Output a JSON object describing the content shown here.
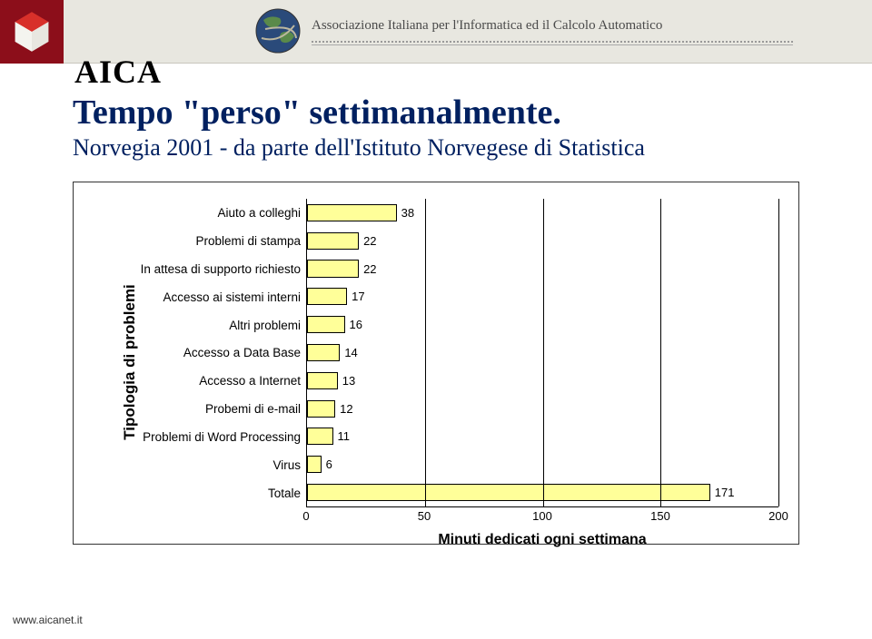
{
  "header": {
    "brand_acronym": "AICA",
    "assoc_text": "Associazione Italiana per l'Informatica ed il Calcolo Automatico",
    "logo_bg_color": "#8c0e1a",
    "banner_bg_color": "#e8e7e0"
  },
  "title": "Tempo \"perso\" settimanalmente.",
  "subtitle": "Norvegia 2001 - da parte dell'Istituto Norvegese di Statistica",
  "title_color": "#002060",
  "title_fontsize": 38,
  "subtitle_fontsize": 26,
  "chart": {
    "type": "bar-horizontal",
    "y_axis_label": "Tipologia di problemi",
    "x_axis_label": "Minuti dedicati ogni settimana",
    "xlim": [
      0,
      200
    ],
    "xtick_step": 50,
    "xticks": [
      0,
      50,
      100,
      150,
      200
    ],
    "categories": [
      "Aiuto a colleghi",
      "Problemi di stampa",
      "In attesa di supporto richiesto",
      "Accesso ai sistemi interni",
      "Altri problemi",
      "Accesso a Data Base",
      "Accesso a Internet",
      "Probemi di e-mail",
      "Problemi di Word Processing",
      "Virus",
      "Totale"
    ],
    "values": [
      38,
      22,
      22,
      17,
      16,
      14,
      13,
      12,
      11,
      6,
      171
    ],
    "bar_colors": [
      "#ffff99",
      "#ffff99",
      "#ffff99",
      "#ffff99",
      "#ffff99",
      "#ffff99",
      "#ffff99",
      "#ffff99",
      "#ffff99",
      "#ffff99",
      "#ffff99"
    ],
    "bar_border_color": "#000000",
    "grid_color": "#000000",
    "background_color": "#ffffff",
    "category_fontsize": 13.5,
    "value_fontsize": 13,
    "axis_label_fontsize": 16,
    "axis_label_weight": "bold"
  },
  "footer": {
    "url": "www.aicanet.it"
  }
}
